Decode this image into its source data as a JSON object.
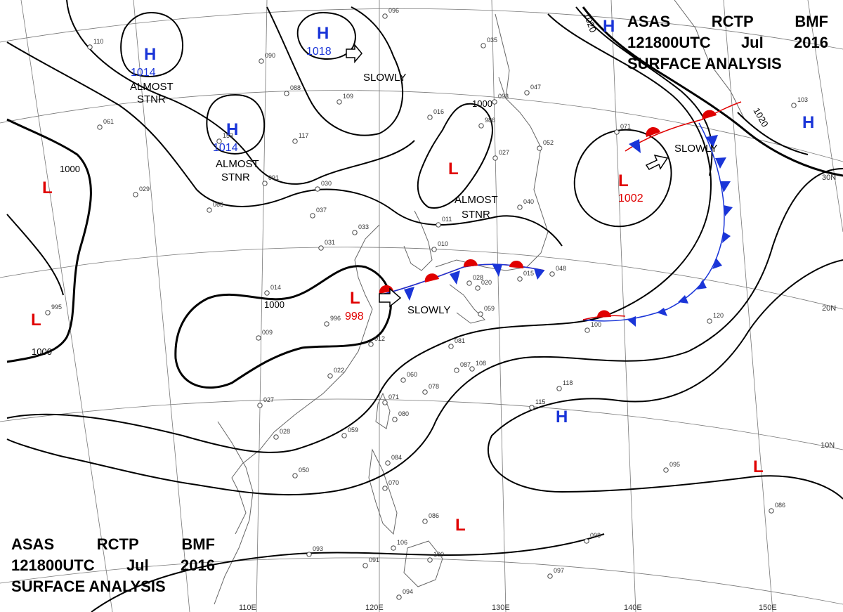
{
  "header_top": {
    "line1": [
      "ASAS",
      "RCTP",
      "BMF"
    ],
    "line2": [
      "121800UTC",
      "Jul",
      "2016"
    ],
    "line3": "SURFACE ANALYSIS"
  },
  "header_bottom": {
    "line1": [
      "ASAS",
      "RCTP",
      "BMF"
    ],
    "line2": [
      "121800UTC",
      "Jul",
      "2016"
    ],
    "line3": "SURFACE ANALYSIS"
  },
  "colors": {
    "high": "#1a35d8",
    "low": "#e00000",
    "isobar": "#000000",
    "grid": "#777777",
    "coast": "#666666",
    "warm_front": "#e00000",
    "cold_front": "#1a35d8"
  },
  "pressure_systems": [
    {
      "type": "H",
      "value": "1014",
      "note": [
        "ALMOST",
        "STNR"
      ]
    },
    {
      "type": "H",
      "value": "1018",
      "note": [
        "SLOWLY"
      ]
    },
    {
      "type": "H",
      "value": "1014",
      "note": [
        "ALMOST",
        "STNR"
      ]
    },
    {
      "type": "H",
      "value": "",
      "note": []
    },
    {
      "type": "H",
      "value": "",
      "note": []
    },
    {
      "type": "H",
      "value": "",
      "note": []
    },
    {
      "type": "L",
      "value": "",
      "note": [
        "ALMOST",
        "STNR"
      ]
    },
    {
      "type": "L",
      "value": "1002",
      "note": [
        "SLOWLY"
      ]
    },
    {
      "type": "L",
      "value": "998",
      "note": [
        "SLOWLY"
      ]
    },
    {
      "type": "L",
      "value": "",
      "note": []
    },
    {
      "type": "L",
      "value": "",
      "note": []
    },
    {
      "type": "L",
      "value": "",
      "note": []
    },
    {
      "type": "L",
      "value": "",
      "note": []
    }
  ],
  "isobar_labels": [
    "1000",
    "1000",
    "1000",
    "1000",
    "1020",
    "1020"
  ],
  "lat_labels": [
    "30N",
    "20N",
    "10N"
  ],
  "lon_labels": [
    "110E",
    "120E",
    "130E",
    "140E",
    "150E"
  ],
  "station_values": [
    "110",
    "090",
    "096",
    "088",
    "109",
    "117",
    "153",
    "091",
    "061",
    "029",
    "066",
    "037",
    "030",
    "033",
    "031",
    "014",
    "996",
    "009",
    "012",
    "022",
    "027",
    "028",
    "050",
    "059",
    "084",
    "070",
    "093",
    "091",
    "106",
    "100",
    "086",
    "094",
    "060",
    "080",
    "071",
    "078",
    "087",
    "081",
    "108",
    "115",
    "118",
    "120",
    "100",
    "048",
    "028",
    "020",
    "059",
    "015",
    "010",
    "011",
    "040",
    "027",
    "986",
    "016",
    "035",
    "093",
    "047",
    "052",
    "071",
    "103",
    "095",
    "086",
    "098",
    "097",
    "995"
  ]
}
